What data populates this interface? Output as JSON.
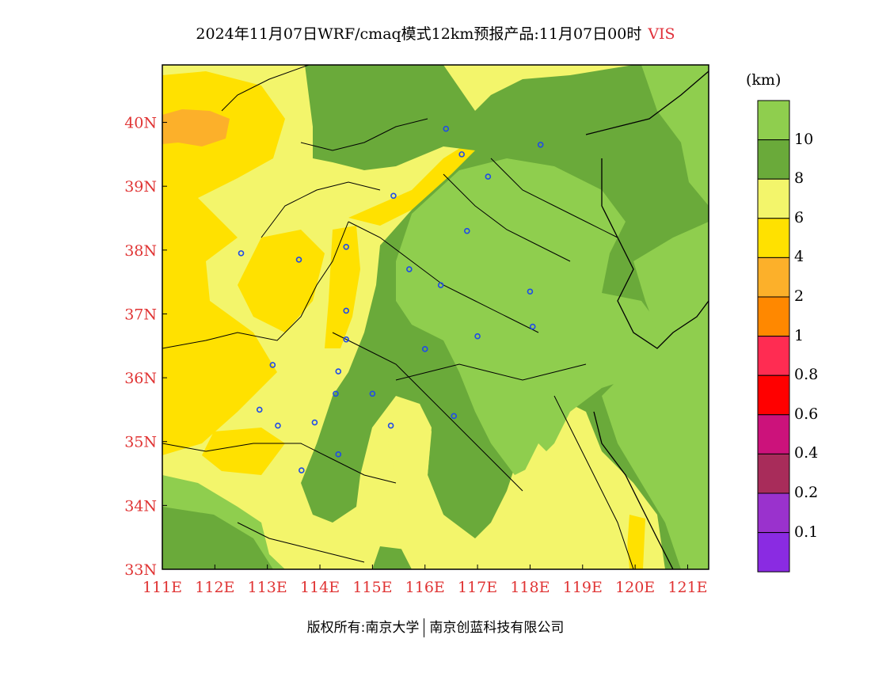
{
  "title": {
    "text": "2024年11月07日WRF/cmaq模式12km预报产品:11月07日00时",
    "variable": "VIS"
  },
  "colors": {
    "axis_label": "#e03434",
    "station": "#1f4be8"
  },
  "axes": {
    "x_labels": [
      "111E",
      "112E",
      "113E",
      "114E",
      "115E",
      "116E",
      "117E",
      "118E",
      "119E",
      "120E",
      "121E"
    ],
    "y_labels": [
      "33N",
      "34N",
      "35N",
      "36N",
      "37N",
      "38N",
      "39N",
      "40N"
    ],
    "lon_range": [
      111,
      121.4
    ],
    "lat_range": [
      33,
      40.9
    ]
  },
  "colorbar": {
    "unit": "(km)",
    "labels": [
      "10",
      "8",
      "6",
      "4",
      "2",
      "1",
      "0.8",
      "0.6",
      "0.4",
      "0.2",
      "0.1"
    ],
    "colors": [
      "#8fce4e",
      "#6aaa3a",
      "#f3f56b",
      "#ffe100",
      "#fcb02a",
      "#ff8800",
      "#ff2c52",
      "#ff0000",
      "#cc127b",
      "#a82c5a",
      "#9a32cd",
      "#8a2be2"
    ]
  },
  "stations": [
    {
      "lon": 115.4,
      "lat": 38.85
    },
    {
      "lon": 116.4,
      "lat": 39.9
    },
    {
      "lon": 116.7,
      "lat": 39.5
    },
    {
      "lon": 117.2,
      "lat": 39.15
    },
    {
      "lon": 118.2,
      "lat": 39.65
    },
    {
      "lon": 116.8,
      "lat": 38.3
    },
    {
      "lon": 112.5,
      "lat": 37.95
    },
    {
      "lon": 113.6,
      "lat": 37.85
    },
    {
      "lon": 114.5,
      "lat": 38.05
    },
    {
      "lon": 115.7,
      "lat": 37.7
    },
    {
      "lon": 116.3,
      "lat": 37.45
    },
    {
      "lon": 118.0,
      "lat": 37.35
    },
    {
      "lon": 114.5,
      "lat": 37.05
    },
    {
      "lon": 114.5,
      "lat": 36.6
    },
    {
      "lon": 116.0,
      "lat": 36.45
    },
    {
      "lon": 117.0,
      "lat": 36.65
    },
    {
      "lon": 118.05,
      "lat": 36.8
    },
    {
      "lon": 113.1,
      "lat": 36.2
    },
    {
      "lon": 114.35,
      "lat": 36.1
    },
    {
      "lon": 114.3,
      "lat": 35.75
    },
    {
      "lon": 115.0,
      "lat": 35.75
    },
    {
      "lon": 112.85,
      "lat": 35.5
    },
    {
      "lon": 113.2,
      "lat": 35.25
    },
    {
      "lon": 113.9,
      "lat": 35.3
    },
    {
      "lon": 115.35,
      "lat": 35.25
    },
    {
      "lon": 116.55,
      "lat": 35.4
    },
    {
      "lon": 114.35,
      "lat": 34.8
    },
    {
      "lon": 113.65,
      "lat": 34.55
    }
  ],
  "footer": {
    "left": "版权所有:南京大学",
    "right": "南京创蓝科技有限公司"
  }
}
